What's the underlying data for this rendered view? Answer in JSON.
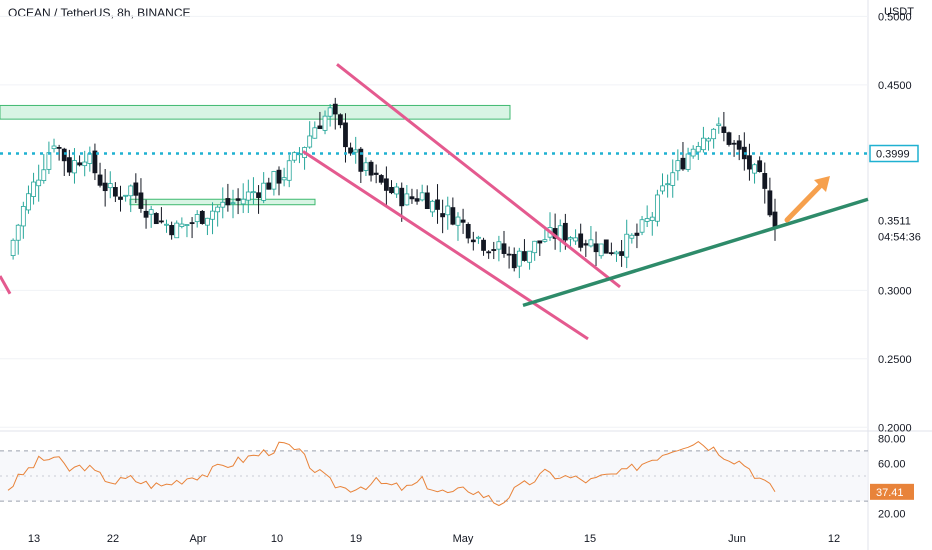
{
  "header": {
    "title": "OCEAN / TetherUS, 8h, BINANCE"
  },
  "colors": {
    "up": "#26a69a",
    "down": "#131722",
    "zone_fill": "#c8f0d8",
    "zone_stroke": "#3fb970",
    "resistance": "#1fb1d1",
    "channel": "#e45a8f",
    "trendline": "#2e8b6a",
    "arrow": "#f6a04d",
    "rsi": "#e8833a",
    "price_tag": "#1fb1d1"
  },
  "chart_data": [
    {
      "type": "candlestick",
      "title": "OCEAN / TetherUS, 8h, BINANCE",
      "currency_label": "USDT",
      "y_ticks": [
        "0.5000",
        "0.4500",
        "0.3999",
        "0.3511",
        "0.3000",
        "0.2500",
        "0.2000"
      ],
      "ylim": [
        0.198,
        0.512
      ],
      "x_tick_labels": [
        "13",
        "22",
        "Apr",
        "10",
        "19",
        "May",
        "15",
        "Jun",
        "12"
      ],
      "last_price": "0.3511",
      "countdown": "04:54:36",
      "resistance_level": "0.3999",
      "close_path": [
        [
          0,
          0.325
        ],
        [
          3,
          0.36
        ],
        [
          6,
          0.385
        ],
        [
          9,
          0.41
        ],
        [
          12,
          0.39
        ],
        [
          15,
          0.4
        ],
        [
          18,
          0.38
        ],
        [
          21,
          0.368
        ],
        [
          24,
          0.375
        ],
        [
          27,
          0.36
        ],
        [
          30,
          0.35
        ],
        [
          33,
          0.345
        ],
        [
          36,
          0.35
        ],
        [
          39,
          0.357
        ],
        [
          42,
          0.362
        ],
        [
          45,
          0.365
        ],
        [
          48,
          0.372
        ],
        [
          51,
          0.378
        ],
        [
          54,
          0.385
        ],
        [
          57,
          0.4
        ],
        [
          60,
          0.42
        ],
        [
          63,
          0.43
        ],
        [
          66,
          0.41
        ],
        [
          69,
          0.39
        ],
        [
          72,
          0.38
        ],
        [
          75,
          0.372
        ],
        [
          78,
          0.366
        ],
        [
          81,
          0.37
        ],
        [
          84,
          0.36
        ],
        [
          87,
          0.355
        ],
        [
          90,
          0.345
        ],
        [
          93,
          0.335
        ],
        [
          96,
          0.33
        ],
        [
          99,
          0.322
        ],
        [
          102,
          0.33
        ],
        [
          105,
          0.338
        ],
        [
          108,
          0.342
        ],
        [
          111,
          0.34
        ],
        [
          114,
          0.335
        ],
        [
          117,
          0.33
        ],
        [
          120,
          0.332
        ],
        [
          123,
          0.34
        ],
        [
          126,
          0.355
        ],
        [
          129,
          0.38
        ],
        [
          132,
          0.395
        ],
        [
          135,
          0.41
        ],
        [
          138,
          0.42
        ],
        [
          141,
          0.41
        ],
        [
          144,
          0.395
        ],
        [
          147,
          0.38
        ],
        [
          150,
          0.3511
        ]
      ],
      "rsi": {
        "levels": [
          "80.00",
          "60.00",
          "20.00"
        ],
        "value": "37.41",
        "ylim": [
          15,
          85
        ],
        "path": [
          [
            0,
            40
          ],
          [
            3,
            52
          ],
          [
            6,
            62
          ],
          [
            9,
            65
          ],
          [
            12,
            55
          ],
          [
            15,
            58
          ],
          [
            18,
            50
          ],
          [
            21,
            45
          ],
          [
            24,
            48
          ],
          [
            27,
            44
          ],
          [
            30,
            42
          ],
          [
            33,
            46
          ],
          [
            36,
            50
          ],
          [
            39,
            52
          ],
          [
            42,
            58
          ],
          [
            45,
            62
          ],
          [
            48,
            66
          ],
          [
            51,
            70
          ],
          [
            54,
            75
          ],
          [
            57,
            68
          ],
          [
            60,
            55
          ],
          [
            63,
            45
          ],
          [
            66,
            40
          ],
          [
            69,
            42
          ],
          [
            72,
            45
          ],
          [
            75,
            42
          ],
          [
            78,
            40
          ],
          [
            81,
            46
          ],
          [
            84,
            38
          ],
          [
            87,
            36
          ],
          [
            90,
            40
          ],
          [
            93,
            35
          ],
          [
            96,
            28
          ],
          [
            99,
            38
          ],
          [
            102,
            45
          ],
          [
            105,
            52
          ],
          [
            108,
            50
          ],
          [
            111,
            48
          ],
          [
            114,
            46
          ],
          [
            117,
            50
          ],
          [
            120,
            52
          ],
          [
            123,
            58
          ],
          [
            126,
            64
          ],
          [
            129,
            70
          ],
          [
            132,
            75
          ],
          [
            135,
            78
          ],
          [
            138,
            72
          ],
          [
            141,
            65
          ],
          [
            144,
            60
          ],
          [
            147,
            48
          ],
          [
            150,
            37.41
          ]
        ]
      }
    }
  ]
}
